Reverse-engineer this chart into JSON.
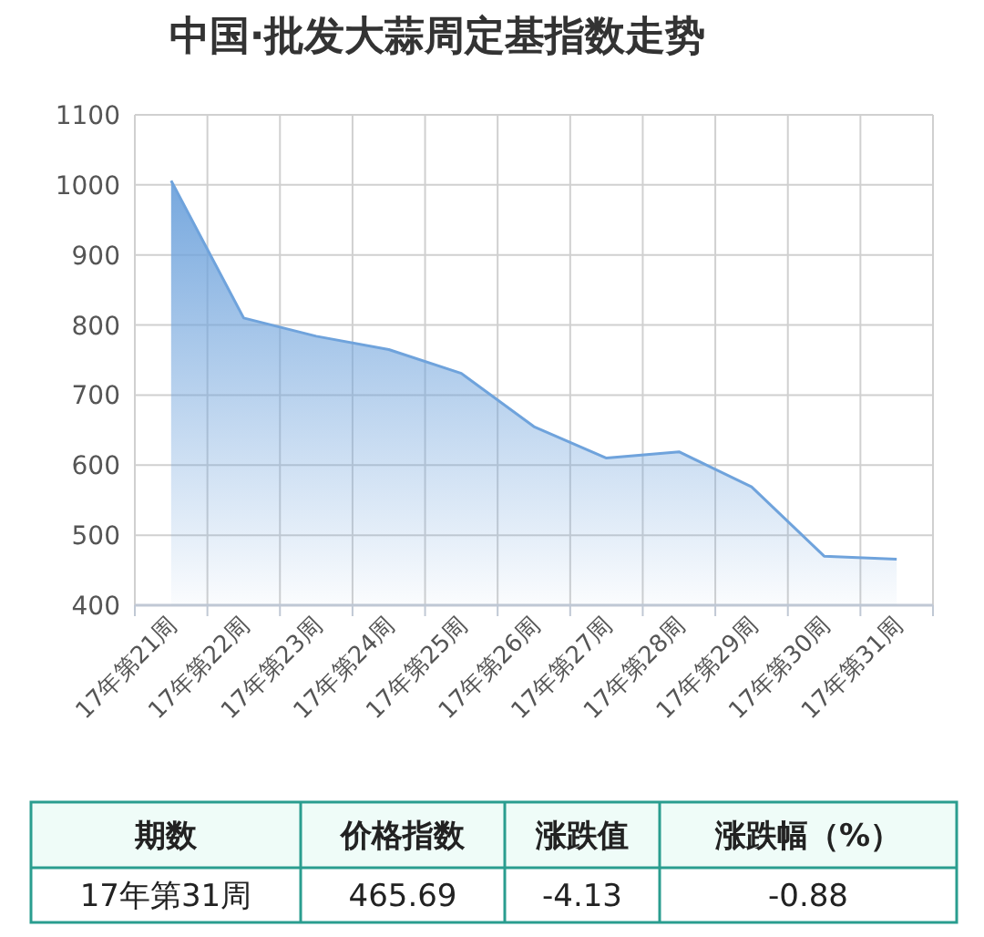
{
  "chart_data": {
    "type": "area",
    "title": "中国·批发大蒜周定基指数走势",
    "categories": [
      "17年第21周",
      "17年第22周",
      "17年第23周",
      "17年第24周",
      "17年第25周",
      "17年第26周",
      "17年第27周",
      "17年第28周",
      "17年第29周",
      "17年第30周",
      "17年第31周"
    ],
    "series": [
      {
        "color": "#6fa3dc",
        "values": [
          1006,
          810,
          784,
          765,
          731,
          655,
          610,
          619,
          569,
          470,
          465.69
        ]
      }
    ],
    "ylim": [
      400,
      1100
    ],
    "yticks": [
      400,
      500,
      600,
      700,
      800,
      900,
      1000,
      1100
    ],
    "grid": true,
    "annotations": [
      "期数",
      "价格指数",
      "涨跌值",
      "涨跌幅（%）",
      "17年第31周",
      "465.69",
      "-4.13",
      "-0.88"
    ]
  }
}
